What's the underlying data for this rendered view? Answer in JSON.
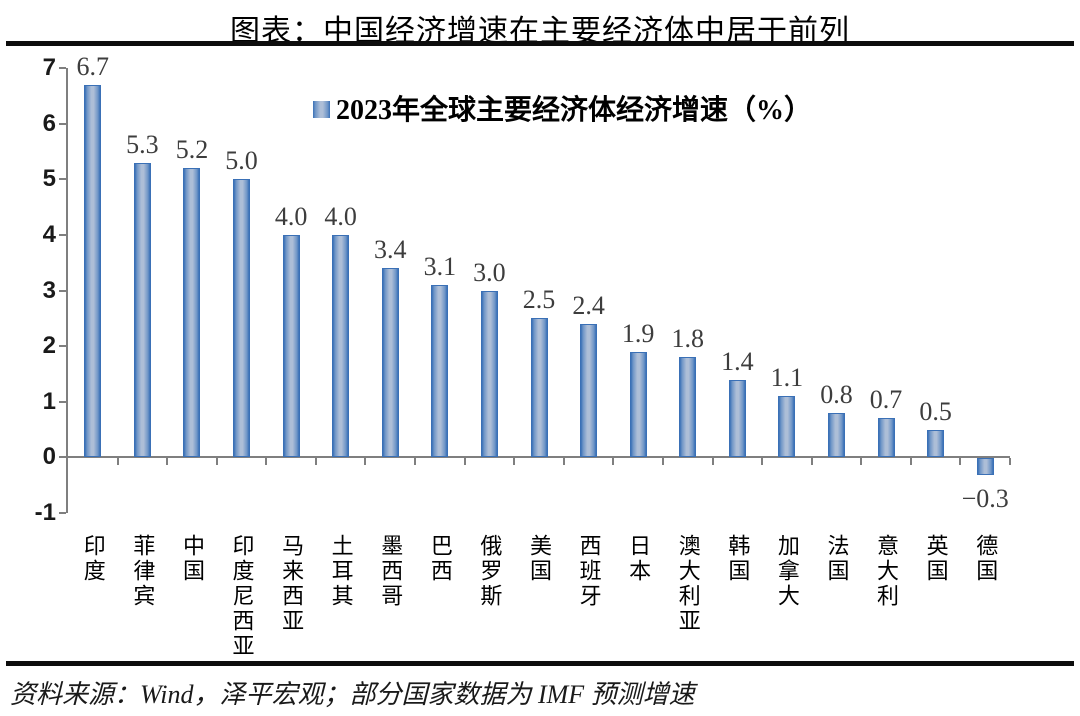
{
  "page": {
    "title": "图表：中国经济增速在主要经济体中居于前列",
    "source_note": "资料来源：Wind，泽平宏观；部分国家数据为 IMF 预测增速"
  },
  "chart_data": {
    "type": "bar",
    "title": "图表：中国经济增速在主要经济体中居于前列",
    "legend": "2023年全球主要经济体经济增速（%）",
    "legend_position": "top-center",
    "categories": [
      "印度",
      "菲律宾",
      "中国",
      "印度尼西亚",
      "马来西亚",
      "土耳其",
      "墨西哥",
      "巴西",
      "俄罗斯",
      "美国",
      "西班牙",
      "日本",
      "澳大利亚",
      "韩国",
      "加拿大",
      "法国",
      "意大利",
      "英国",
      "德国"
    ],
    "values": [
      6.7,
      5.3,
      5.2,
      5.0,
      4.0,
      4.0,
      3.4,
      3.1,
      3.0,
      2.5,
      2.4,
      1.9,
      1.8,
      1.4,
      1.1,
      0.8,
      0.7,
      0.5,
      -0.3
    ],
    "value_labels": [
      "6.7",
      "5.3",
      "5.2",
      "5.0",
      "4.0",
      "4.0",
      "3.4",
      "3.1",
      "3.0",
      "2.5",
      "2.4",
      "1.9",
      "1.8",
      "1.4",
      "1.1",
      "0.8",
      "0.7",
      "0.5",
      "−0.3"
    ],
    "xlabel": "",
    "ylabel": "",
    "ylim": [
      -1,
      7
    ],
    "y_tick_labels": [
      "7",
      "6",
      "5",
      "4",
      "3",
      "2",
      "1",
      "0",
      "-1"
    ],
    "grid": false,
    "colors": {
      "bar_edge": "#3a70b6",
      "bar_mid": "#adbed7",
      "bar_border": "#2f66ab",
      "axis": "#7f7f7f",
      "value_label": "#3d3d3d"
    }
  }
}
